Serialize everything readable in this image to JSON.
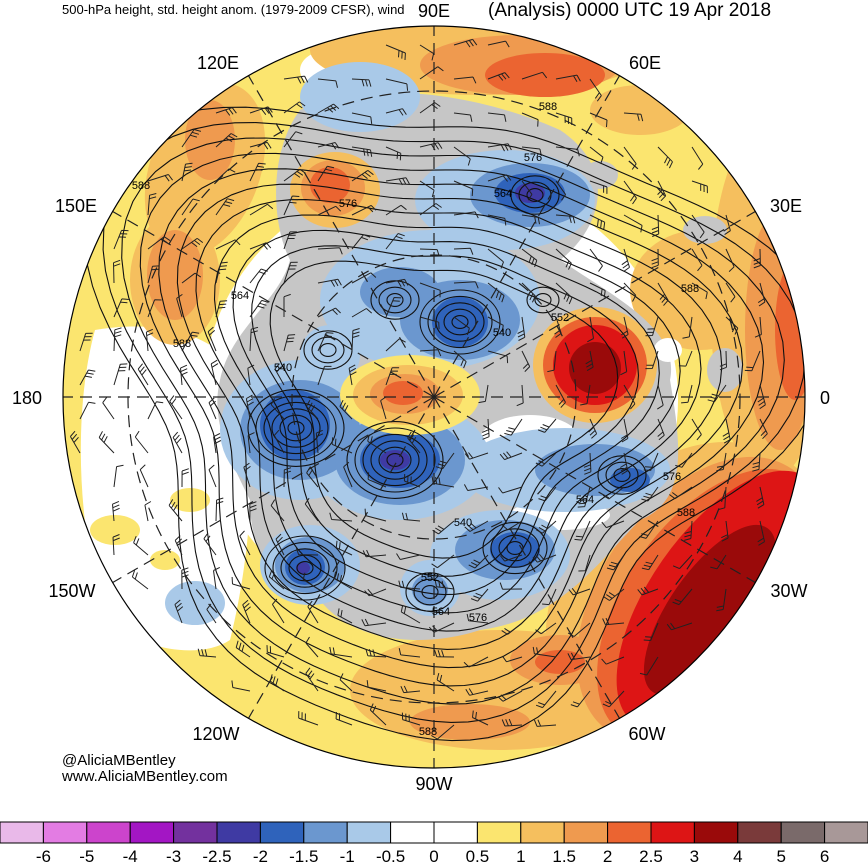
{
  "title": "500-hPa height, std. height anom. (1979-2009 CFSR), wind",
  "valid_time": "(Analysis) 0000 UTC 19 Apr 2018",
  "longitude_labels": {
    "lon_90e": "90E",
    "lon_60e": "60E",
    "lon_120e": "120E",
    "lon_150e": "150E",
    "lon_30e": "30E",
    "lon_180": "180",
    "lon_0": "0",
    "lon_150w": "150W",
    "lon_30w": "30W",
    "lon_120w": "120W",
    "lon_60w": "60W",
    "lon_90w": "90W"
  },
  "contour_labels": [
    "588",
    "576",
    "564",
    "576",
    "588",
    "564",
    "588",
    "540",
    "540",
    "552",
    "588",
    "576",
    "564",
    "588",
    "540",
    "552",
    "564",
    "576",
    "588"
  ],
  "credits": {
    "handle": "@AliciaMBentley",
    "website": "www.AliciaMBentley.com"
  },
  "colorbar": {
    "labels": [
      "-6",
      "-5",
      "-4",
      "-3",
      "-2.5",
      "-2",
      "-1.5",
      "-1",
      "-0.5",
      "0",
      "0.5",
      "1",
      "1.5",
      "2",
      "2.5",
      "3",
      "4",
      "5",
      "6"
    ],
    "colors": [
      "#e9b9e9",
      "#e37ce3",
      "#cc44cc",
      "#a316c4",
      "#73319e",
      "#3f3aa3",
      "#2f63bb",
      "#6b97cf",
      "#a9c9e8",
      "#ffffff",
      "#ffffff",
      "#fbe56f",
      "#f5bf5e",
      "#ef9a4f",
      "#eb6431",
      "#dd1515",
      "#9a0a0a",
      "#7a3a3a",
      "#7a6a6a",
      "#a89898"
    ]
  }
}
